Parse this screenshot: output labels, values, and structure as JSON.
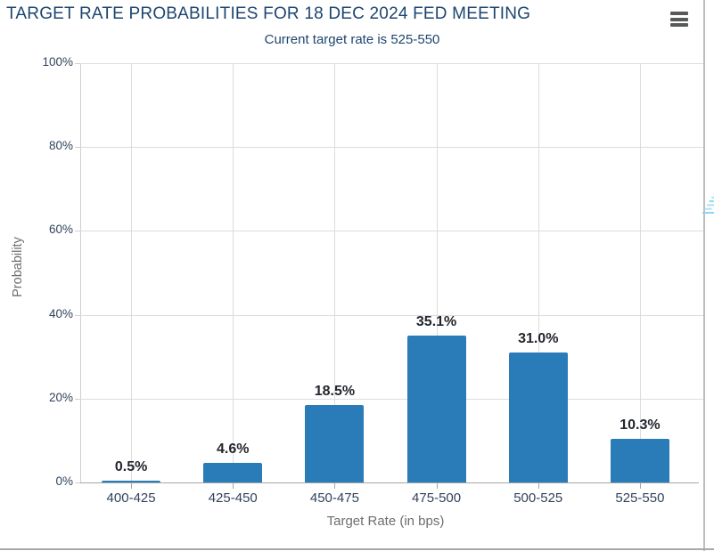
{
  "header": {
    "title": "TARGET RATE PROBABILITIES FOR 18 DEC 2024 FED MEETING",
    "subtitle": "Current target rate is 525-550"
  },
  "menu": {
    "icon": "hamburger-icon"
  },
  "watermark": {
    "icon": "quikstrike-logo",
    "letter": "Q"
  },
  "colors": {
    "bar": "#2a7cb8",
    "title_navy": "#1c4570",
    "tick_label": "#32435c",
    "axis_title_gray": "#6e6e6e",
    "gridline": "#dcdcdc",
    "watermark_gray": "#bdbdbd",
    "watermark_blue": "#a9dff6"
  },
  "chart_data": {
    "type": "bar",
    "title": "TARGET RATE PROBABILITIES FOR 18 DEC 2024 FED MEETING",
    "subtitle": "Current target rate is 525-550",
    "categories": [
      "400-425",
      "425-450",
      "450-475",
      "475-500",
      "500-525",
      "525-550"
    ],
    "values": [
      0.5,
      4.6,
      18.5,
      35.1,
      31.0,
      10.3
    ],
    "value_labels": [
      "0.5%",
      "4.6%",
      "18.5%",
      "35.1%",
      "31.0%",
      "10.3%"
    ],
    "xlabel": "Target Rate (in bps)",
    "ylabel": "Probability",
    "ylim": [
      0,
      100
    ],
    "ytick_labels": [
      "0%",
      "20%",
      "40%",
      "60%",
      "80%",
      "100%"
    ],
    "ytick_values": [
      0,
      20,
      40,
      60,
      80,
      100
    ],
    "grid": true,
    "legend": false
  }
}
